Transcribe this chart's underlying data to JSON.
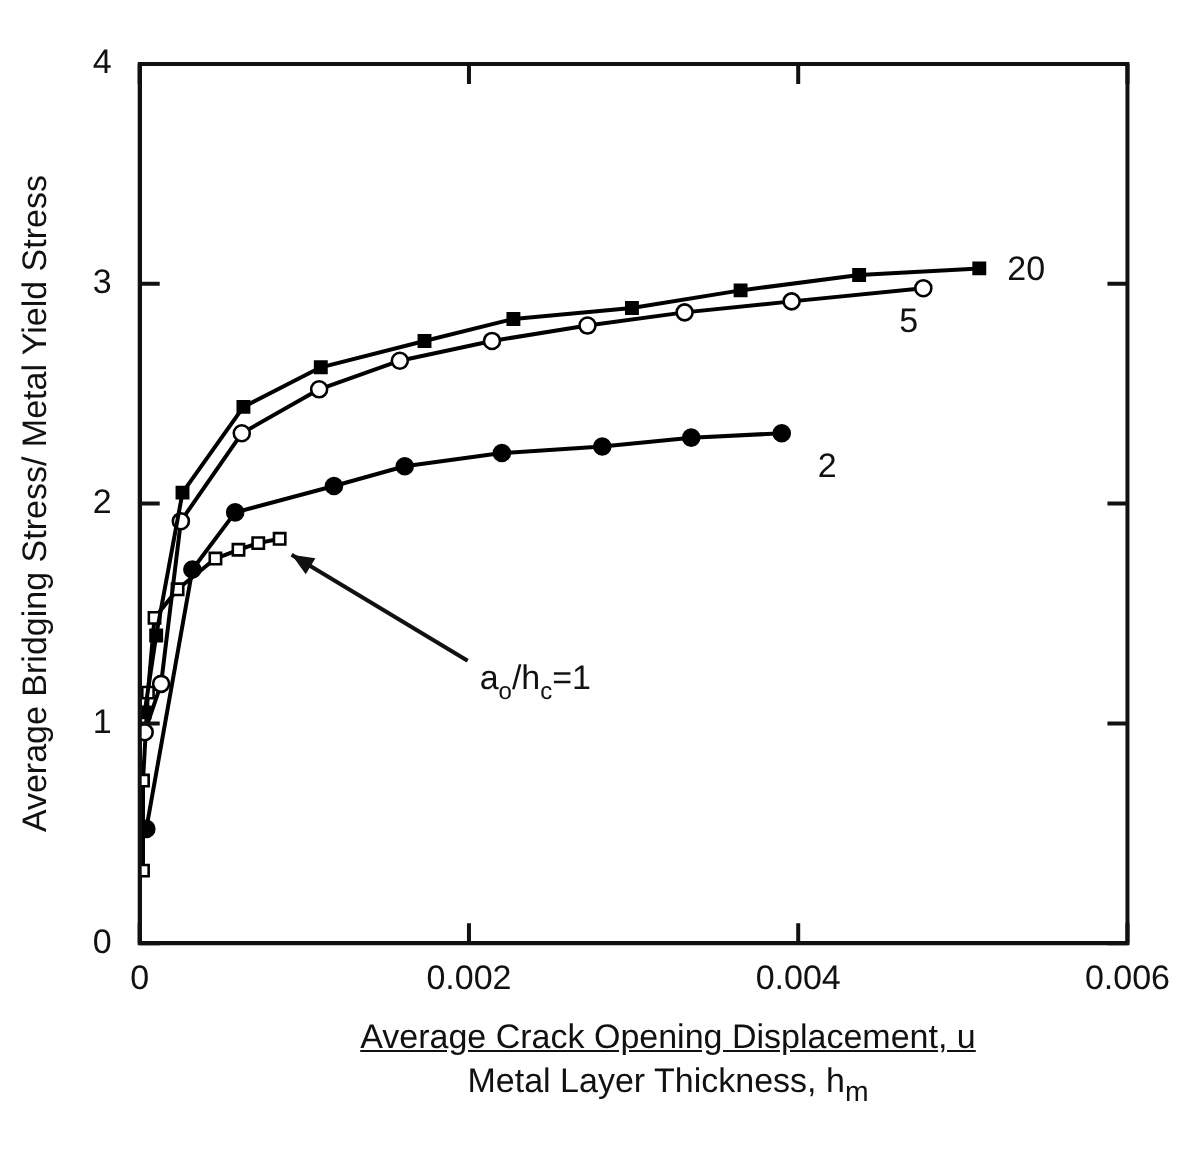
{
  "chart_data": {
    "type": "line",
    "ylabel": "Average Bridging Stress/ Metal Yield Stress",
    "xlabel": "Average Crack Opening Displacement, u\nMetal Layer Thickness, h$_{m}$",
    "xlim": [
      0,
      0.006
    ],
    "xticks": [
      0,
      0.002,
      0.004,
      0.006
    ],
    "ylim": [
      0,
      4
    ],
    "yticks": [
      0,
      1,
      2,
      3,
      4
    ],
    "grid": false,
    "legend": false,
    "line_style": "solid",
    "series": [
      {
        "name": "20",
        "color": "#000000",
        "marker": "square",
        "x": [
          3e-05,
          0.0001,
          0.00026,
          0.00063,
          0.0011,
          0.00173,
          0.00227,
          0.00299,
          0.00365,
          0.00437,
          0.0051
        ],
        "values": [
          1.05,
          1.4,
          2.05,
          2.44,
          2.62,
          2.74,
          2.84,
          2.89,
          2.97,
          3.04,
          3.07
        ]
      },
      {
        "name": "5",
        "color": "#000000",
        "marker": "circle",
        "x": [
          3e-05,
          0.00013,
          0.00025,
          0.00062,
          0.00109,
          0.00158,
          0.00214,
          0.00272,
          0.00331,
          0.00396,
          0.00476
        ],
        "values": [
          0.96,
          1.18,
          1.92,
          2.32,
          2.52,
          2.65,
          2.74,
          2.81,
          2.87,
          2.92,
          2.98
        ]
      },
      {
        "name": "2",
        "color": "#000000",
        "marker": "circle",
        "x": [
          4e-05,
          0.00013,
          0.00032,
          0.00058,
          0.00118,
          0.00161,
          0.0022,
          0.00281,
          0.00335,
          0.0039
        ],
        "values": [
          0.52,
          null,
          1.7,
          1.96,
          2.08,
          2.17,
          2.23,
          2.26,
          2.3,
          2.32
        ]
      },
      {
        "name": "a$_{o}$/h$_{c}$=1",
        "color": "#000000",
        "marker": "square",
        "x": [
          2e-05,
          2e-05,
          5e-05,
          9e-05,
          0.00023,
          0.00034,
          0.00046,
          0.0006,
          0.00072,
          0.00085
        ],
        "values": [
          0.33,
          0.74,
          1.14,
          1.48,
          1.61,
          null,
          1.75,
          1.79,
          1.82,
          1.84
        ]
      }
    ]
  }
}
